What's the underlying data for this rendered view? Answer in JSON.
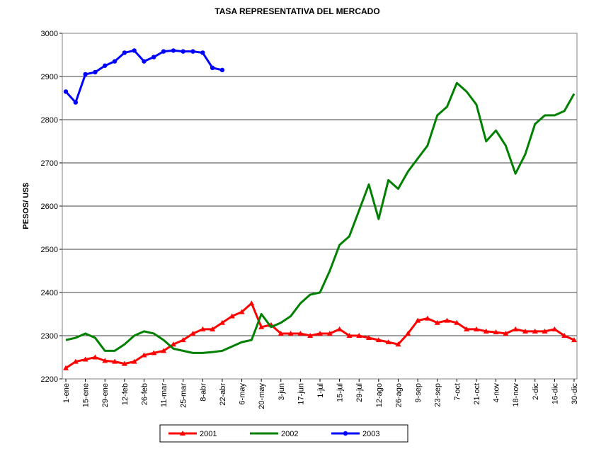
{
  "chart_data": {
    "type": "line",
    "title": "TASA REPRESENTATIVA DEL MERCADO",
    "y_label": "PESOS/ US$",
    "categories": [
      "1-ene",
      null,
      "15-ene",
      null,
      "29-ene",
      null,
      "12-feb",
      null,
      "26-feb",
      null,
      "11-mar",
      null,
      "25-mar",
      null,
      "8-abr",
      null,
      "22-abr",
      null,
      "6-may",
      null,
      "20-may",
      null,
      "3-jun",
      null,
      "17-jun",
      null,
      "1-jul",
      null,
      "15-jul",
      null,
      "29-jul",
      null,
      "12-ago",
      null,
      "26-ago",
      null,
      "9-sep",
      null,
      "23-sep",
      null,
      "7-oct",
      null,
      "21-oct",
      null,
      "4-nov",
      null,
      "18-nov",
      null,
      "2-dic",
      null,
      "16-dic",
      null,
      "30-dic"
    ],
    "series": [
      {
        "name": "2001",
        "color": "#ff0000",
        "marker": "triangle",
        "values": [
          2225,
          2240,
          2245,
          2250,
          2242,
          2240,
          2235,
          2240,
          2255,
          2260,
          2265,
          2280,
          2290,
          2305,
          2315,
          2315,
          2330,
          2345,
          2355,
          2375,
          2320,
          2325,
          2305,
          2305,
          2305,
          2300,
          2305,
          2305,
          2315,
          2300,
          2300,
          2295,
          2290,
          2285,
          2280,
          2305,
          2335,
          2340,
          2330,
          2335,
          2330,
          2315,
          2315,
          2310,
          2308,
          2305,
          2315,
          2310,
          2310,
          2310,
          2315,
          2300,
          2290
        ]
      },
      {
        "name": "2002",
        "color": "#008000",
        "marker": "none",
        "values": [
          2290,
          2295,
          2305,
          2295,
          2265,
          2265,
          2280,
          2300,
          2310,
          2305,
          2290,
          2270,
          2265,
          2260,
          2260,
          2262,
          2265,
          2275,
          2285,
          2290,
          2350,
          2320,
          2330,
          2345,
          2375,
          2395,
          2400,
          2450,
          2510,
          2530,
          2590,
          2650,
          2570,
          2660,
          2640,
          2680,
          2710,
          2740,
          2810,
          2830,
          2885,
          2865,
          2835,
          2750,
          2775,
          2740,
          2675,
          2720,
          2790,
          2810,
          2810,
          2820,
          2860
        ]
      },
      {
        "name": "2003",
        "color": "#0000ff",
        "marker": "circle",
        "values": [
          2865,
          2840,
          2905,
          2910,
          2925,
          2935,
          2955,
          2960,
          2935,
          2945,
          2958,
          2960,
          2958,
          2958,
          2955,
          2920,
          2915,
          null,
          null,
          null,
          null,
          null,
          null,
          null,
          null,
          null,
          null,
          null,
          null,
          null,
          null,
          null,
          null,
          null,
          null,
          null,
          null,
          null,
          null,
          null,
          null,
          null,
          null,
          null,
          null,
          null,
          null,
          null,
          null,
          null,
          null,
          null,
          null
        ]
      }
    ],
    "ylim": [
      2200,
      3000
    ],
    "yticks": [
      2200,
      2300,
      2400,
      2500,
      2600,
      2700,
      2800,
      2900,
      3000
    ],
    "grid": true,
    "legend": "bottom"
  }
}
